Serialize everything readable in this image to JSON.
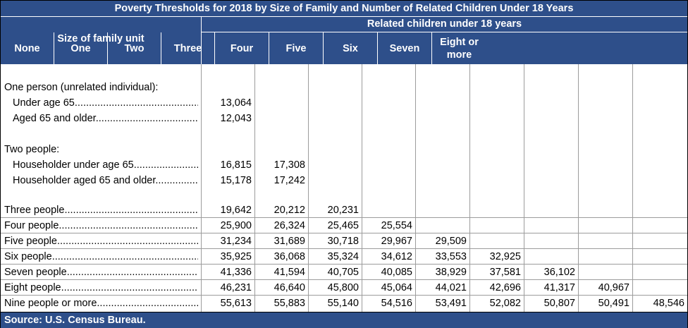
{
  "title": "Poverty Thresholds for 2018 by Size of Family and Number of Related Children Under 18 Years",
  "header": {
    "size_label": "Size of family unit",
    "related_label": "Related children under 18 years",
    "columns": [
      "None",
      "One",
      "Two",
      "Three",
      "Four",
      "Five",
      "Six",
      "Seven",
      "Eight or more"
    ]
  },
  "rows": [
    {
      "label": "",
      "values": [],
      "indent": false,
      "dots": false
    },
    {
      "label": "One person (unrelated individual):",
      "values": [],
      "indent": false,
      "dots": false
    },
    {
      "label": "Under age 65",
      "values": [
        "13,064"
      ],
      "indent": true,
      "dots": true
    },
    {
      "label": "Aged 65 and older",
      "values": [
        "12,043"
      ],
      "indent": true,
      "dots": true
    },
    {
      "label": "",
      "values": [],
      "indent": false,
      "dots": false
    },
    {
      "label": "Two people:",
      "values": [],
      "indent": false,
      "dots": false
    },
    {
      "label": "Householder under age 65",
      "values": [
        "16,815",
        "17,308"
      ],
      "indent": true,
      "dots": true
    },
    {
      "label": "Householder aged 65 and older",
      "values": [
        "15,178",
        "17,242"
      ],
      "indent": true,
      "dots": true
    },
    {
      "label": "",
      "values": [],
      "indent": false,
      "dots": false
    },
    {
      "label": "Three people",
      "values": [
        "19,642",
        "20,212",
        "20,231"
      ],
      "indent": false,
      "dots": true
    },
    {
      "label": "Four people",
      "values": [
        "25,900",
        "26,324",
        "25,465",
        "25,554"
      ],
      "indent": false,
      "dots": true
    },
    {
      "label": "Five people",
      "values": [
        "31,234",
        "31,689",
        "30,718",
        "29,967",
        "29,509"
      ],
      "indent": false,
      "dots": true
    },
    {
      "label": "Six people",
      "values": [
        "35,925",
        "36,068",
        "35,324",
        "34,612",
        "33,553",
        "32,925"
      ],
      "indent": false,
      "dots": true
    },
    {
      "label": "Seven people",
      "values": [
        "41,336",
        "41,594",
        "40,705",
        "40,085",
        "38,929",
        "37,581",
        "36,102"
      ],
      "indent": false,
      "dots": true
    },
    {
      "label": "Eight people",
      "values": [
        "46,231",
        "46,640",
        "45,800",
        "45,064",
        "44,021",
        "42,696",
        "41,317",
        "40,967"
      ],
      "indent": false,
      "dots": true
    },
    {
      "label": "Nine people or more",
      "values": [
        "55,613",
        "55,883",
        "55,140",
        "54,516",
        "53,491",
        "52,082",
        "50,807",
        "50,491",
        "48,546"
      ],
      "indent": false,
      "dots": true
    }
  ],
  "footer": "Source:  U.S. Census Bureau.",
  "colors": {
    "header_bg": "#2e4f8a",
    "header_text": "#ffffff",
    "grid": "#9c9c9c"
  }
}
